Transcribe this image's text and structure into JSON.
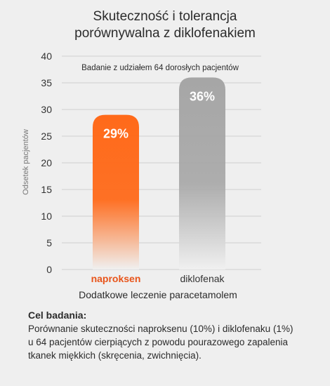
{
  "title_lines": [
    "Skuteczność i tolerancja",
    "porównywalna z diklofenakiem"
  ],
  "chart_data": {
    "type": "bar",
    "title": "Skuteczność i tolerancja porównywalna z diklofenakiem",
    "subtitle": "Badanie z udziałem 64 dorosłych pacjentów",
    "categories": [
      "naproksen",
      "diklofenak"
    ],
    "values": [
      29,
      36
    ],
    "value_labels": [
      "29%",
      "36%"
    ],
    "ylabel": "Odsetek pacjentów",
    "xlabel": "Dodatkowe leczenie paracetamolem",
    "ylim": [
      0,
      40
    ],
    "yticks": [
      0,
      5,
      10,
      15,
      20,
      25,
      30,
      35,
      40
    ],
    "grid": true,
    "colors": {
      "naproksen_top": "#ff6a1a",
      "naproksen_bottom": "#f0f0f0",
      "diklofenak_top": "#a6a6a6",
      "diklofenak_bottom": "#f0f0f0",
      "naproksen_label": "#e8541a",
      "diklofenak_label": "#333333"
    }
  },
  "description": {
    "heading": "Cel badania:",
    "lines": [
      "Porównanie skuteczności naproksenu (10%) i diklofenaku (1%)",
      "u 64 pacjentów cierpiących z powodu pourazowego zapalenia",
      "tkanek miękkich (skręcenia, zwichnięcia)."
    ]
  }
}
